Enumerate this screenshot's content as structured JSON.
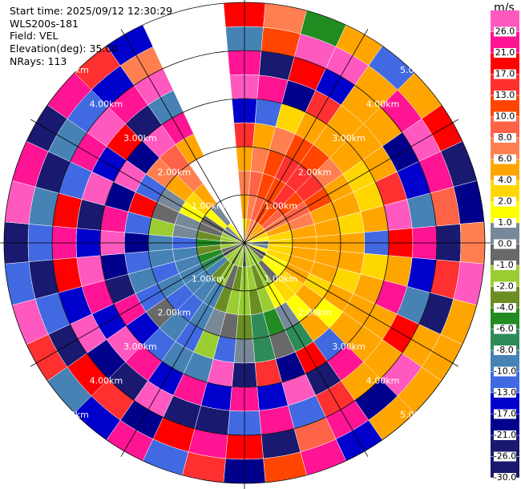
{
  "chart_data": {
    "type": "ppi",
    "info": [
      "Start time: 2025/09/12 12:30:29",
      "WLS200s-181",
      "Field: VEL",
      "Elevation(deg): 35.00",
      "NRays: 113"
    ],
    "colorbar_title": "m/s",
    "rlim": [
      0,
      5
    ],
    "rticks": [
      {
        "value": 1,
        "label": "1.00km"
      },
      {
        "value": 2,
        "label": "2.00km"
      },
      {
        "value": 3,
        "label": "3.00km"
      },
      {
        "value": 4,
        "label": "4.00km"
      },
      {
        "value": 5,
        "label": "5.00km"
      }
    ],
    "cticks": [
      {
        "value": 26,
        "label": "26.0"
      },
      {
        "value": 21,
        "label": "21.0"
      },
      {
        "value": 17,
        "label": "17.0"
      },
      {
        "value": 13,
        "label": "13.0"
      },
      {
        "value": 10,
        "label": "10.0"
      },
      {
        "value": 8,
        "label": "8.0"
      },
      {
        "value": 6,
        "label": "6.0"
      },
      {
        "value": 4,
        "label": "4.0"
      },
      {
        "value": 2,
        "label": "2.0"
      },
      {
        "value": 1,
        "label": "1.0"
      },
      {
        "value": 0,
        "label": "0.0"
      },
      {
        "value": -1,
        "label": "-1.0"
      },
      {
        "value": -2,
        "label": "-2.0"
      },
      {
        "value": -4,
        "label": "-4.0"
      },
      {
        "value": -6,
        "label": "-6.0"
      },
      {
        "value": -8,
        "label": "-8.0"
      },
      {
        "value": -10,
        "label": "-10.0"
      },
      {
        "value": -13,
        "label": "-13.0"
      },
      {
        "value": -17,
        "label": "-17.0"
      },
      {
        "value": -21,
        "label": "-21.0"
      },
      {
        "value": -26,
        "label": "-26.0"
      },
      {
        "value": -30,
        "label": "-30.0"
      }
    ],
    "colors": [
      "#ff59c0",
      "#ff1493",
      "#ff0000",
      "#ff3030",
      "#ff4500",
      "#ff6347",
      "#ff7f50",
      "#ffa500",
      "#ffd700",
      "#ffff00",
      "#778899",
      "#696969",
      "#9acd32",
      "#6b8e23",
      "#228b22",
      "#2e8b57",
      "#4682b4",
      "#4169e1",
      "#0000cd",
      "#00008b",
      "#191970",
      "#191970"
    ],
    "azimuths": [
      0,
      10,
      20,
      30,
      40,
      50,
      60,
      70,
      80,
      90,
      100,
      110,
      120,
      130,
      140,
      150,
      160,
      170,
      180,
      190,
      200,
      210,
      220,
      230,
      240,
      250,
      260,
      270,
      280,
      290,
      300,
      310,
      320,
      330,
      340,
      350
    ],
    "ranges": [
      0.25,
      0.75,
      1.25,
      1.75,
      2.25,
      2.75,
      3.25,
      3.75,
      4.25,
      4.75
    ],
    "values": [
      [
        1,
        4,
        6,
        4,
        13,
        -17,
        26,
        21,
        -10,
        17
      ],
      [
        4,
        6,
        8,
        6,
        4,
        -13,
        21,
        -26,
        10,
        6
      ],
      [
        6,
        8,
        10,
        10,
        6,
        2,
        -21,
        17,
        26,
        -6
      ],
      [
        6,
        10,
        10,
        13,
        10,
        4,
        13,
        -17,
        26,
        4
      ],
      [
        4,
        10,
        13,
        13,
        10,
        4,
        4,
        4,
        4,
        -13
      ],
      [
        4,
        8,
        10,
        13,
        6,
        4,
        4,
        4,
        21,
        4
      ],
      [
        4,
        6,
        8,
        10,
        4,
        2,
        4,
        -21,
        26,
        17
      ],
      [
        2,
        4,
        6,
        4,
        4,
        2,
        13,
        -17,
        21,
        -26
      ],
      [
        1,
        2,
        4,
        4,
        2,
        4,
        26,
        -10,
        8,
        -21
      ],
      [
        0,
        2,
        4,
        4,
        4,
        -13,
        17,
        21,
        -26,
        6
      ],
      [
        0,
        2,
        4,
        4,
        4,
        2,
        4,
        -17,
        13,
        26
      ],
      [
        1,
        2,
        4,
        4,
        2,
        4,
        21,
        -10,
        -26,
        4
      ],
      [
        -1,
        1,
        4,
        2,
        4,
        4,
        4,
        17,
        4,
        4
      ],
      [
        -1,
        1,
        2,
        4,
        1,
        4,
        4,
        4,
        26,
        4
      ],
      [
        -2,
        -1,
        2,
        1,
        4,
        -13,
        21,
        4,
        -21,
        4
      ],
      [
        -2,
        -2,
        1,
        0,
        -8,
        17,
        -26,
        13,
        21,
        -17
      ],
      [
        -2,
        -4,
        -2,
        -6,
        -1,
        -21,
        26,
        -13,
        8,
        21
      ],
      [
        -2,
        -2,
        -4,
        -8,
        -8,
        13,
        -17,
        21,
        -26,
        10
      ],
      [
        -1,
        -2,
        -2,
        -4,
        0,
        -26,
        21,
        -13,
        17,
        -21
      ],
      [
        -2,
        -4,
        -2,
        -1,
        -13,
        26,
        -17,
        -26,
        21,
        13
      ],
      [
        -2,
        -1,
        -4,
        0,
        -2,
        -10,
        21,
        -26,
        17,
        -13
      ],
      [
        -4,
        -2,
        -10,
        -10,
        -13,
        -10,
        -17,
        26,
        -21,
        21
      ],
      [
        -2,
        -4,
        -10,
        -13,
        -10,
        -13,
        21,
        -26,
        13,
        -17
      ],
      [
        -2,
        -10,
        -10,
        -13,
        -1,
        -17,
        26,
        -21,
        17,
        -10
      ],
      [
        -1,
        -8,
        -10,
        -10,
        -13,
        21,
        -17,
        26,
        -26,
        13
      ],
      [
        -1,
        -6,
        -10,
        -13,
        -10,
        -26,
        21,
        -17,
        -13,
        26
      ],
      [
        -2,
        -4,
        -10,
        -10,
        -13,
        -21,
        26,
        17,
        -26,
        -13
      ],
      [
        -4,
        -6,
        -13,
        -10,
        -21,
        26,
        -17,
        21,
        -13,
        -26
      ],
      [
        -2,
        -4,
        0,
        -2,
        -13,
        21,
        -26,
        17,
        -10,
        26
      ],
      [
        -2,
        -1,
        0,
        -1,
        17,
        -21,
        26,
        -13,
        -26,
        21
      ],
      [
        0,
        -1,
        1,
        0,
        -13,
        26,
        -17,
        21,
        -10,
        -26
      ],
      [
        0,
        1,
        2,
        4,
        6,
        -21,
        17,
        26,
        -13,
        21
      ],
      [
        1,
        0,
        4,
        6,
        8,
        26,
        -26,
        21,
        -17,
        13
      ],
      [
        null,
        null,
        null,
        null,
        4,
        21,
        -10,
        26,
        6,
        -17
      ],
      [
        null,
        null,
        null,
        null,
        null,
        null,
        null,
        null,
        null,
        null
      ],
      [
        null,
        null,
        null,
        null,
        null,
        null,
        null,
        null,
        null,
        null
      ]
    ]
  }
}
